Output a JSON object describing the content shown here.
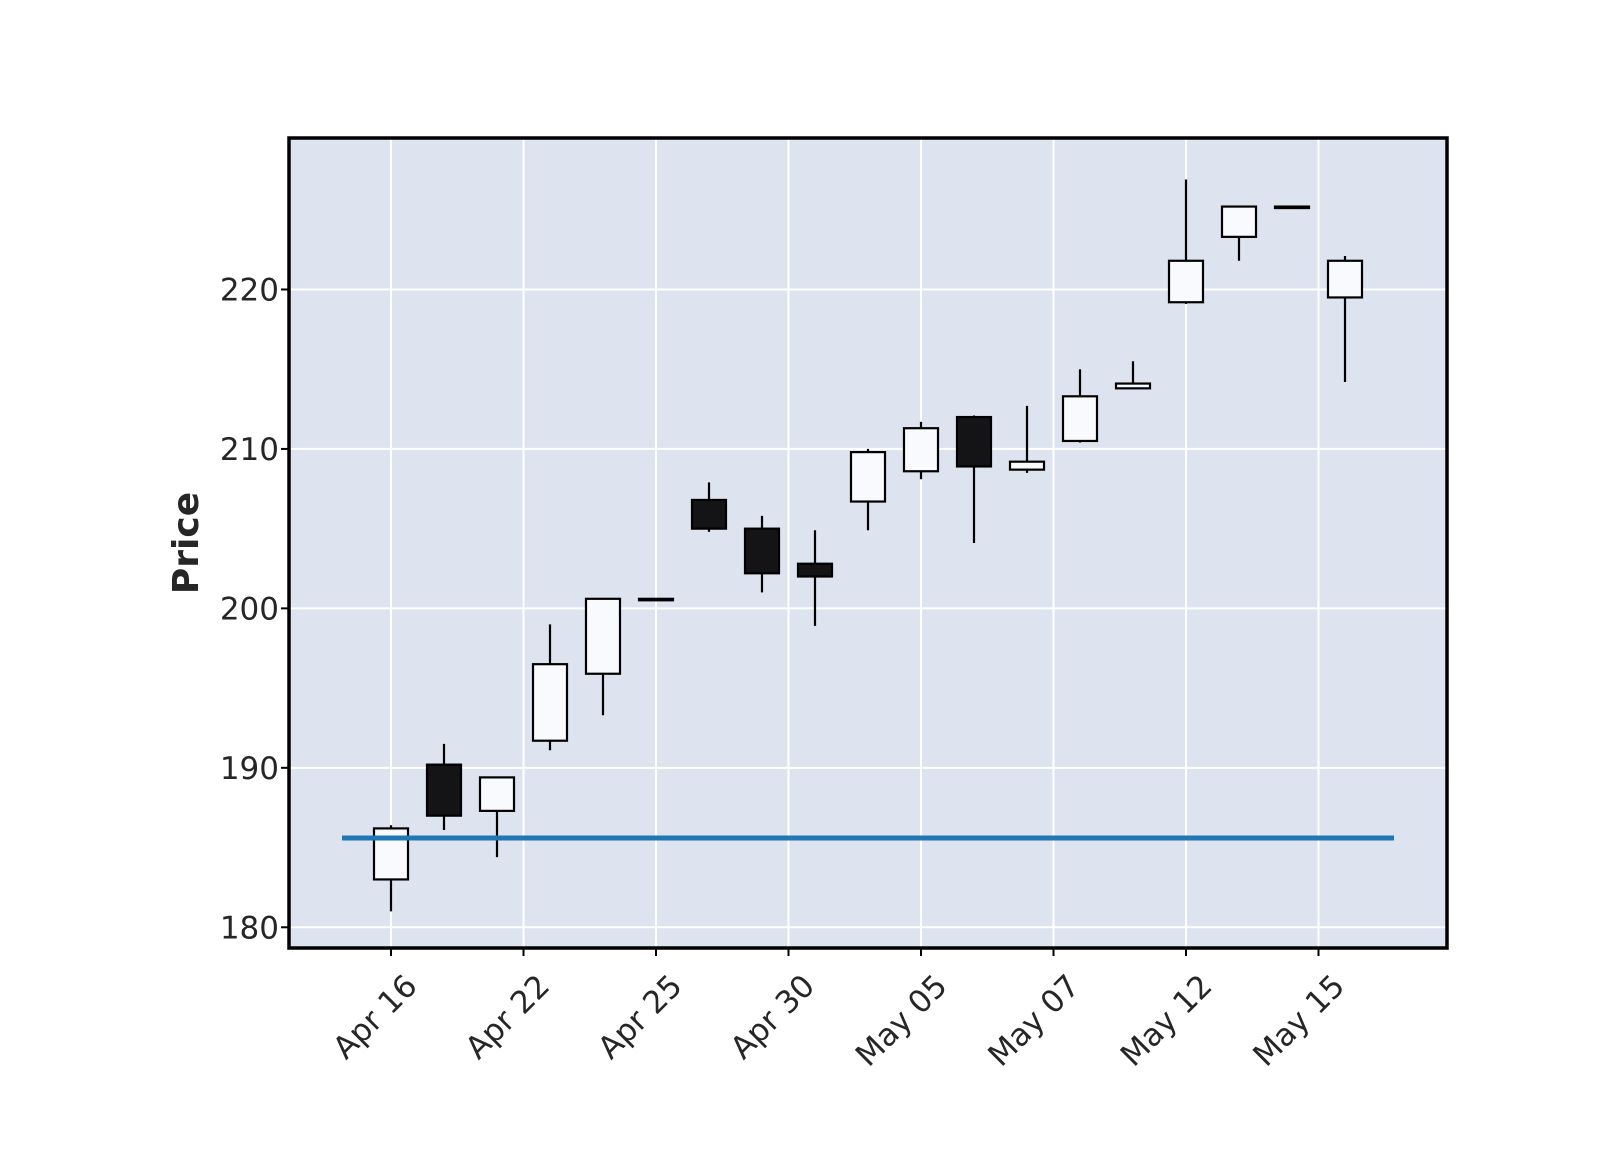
{
  "chart_data": {
    "type": "candlestick",
    "ylabel": "Price",
    "ylim": [
      178.7,
      229.5
    ],
    "yticks": [
      180,
      190,
      200,
      210,
      220
    ],
    "xtick_labels": [
      {
        "index": 0,
        "label": "Apr 16"
      },
      {
        "index": 2.5,
        "label": "Apr 22"
      },
      {
        "index": 5,
        "label": "Apr 25"
      },
      {
        "index": 7.5,
        "label": "Apr 30"
      },
      {
        "index": 10,
        "label": "May 05"
      },
      {
        "index": 12.5,
        "label": "May 07"
      },
      {
        "index": 15,
        "label": "May 12"
      },
      {
        "index": 17.5,
        "label": "May 15"
      }
    ],
    "candles": [
      {
        "open": 183.0,
        "high": 186.4,
        "low": 181.0,
        "close": 186.2
      },
      {
        "open": 190.2,
        "high": 191.5,
        "low": 186.1,
        "close": 187.0
      },
      {
        "open": 187.3,
        "high": 189.4,
        "low": 184.4,
        "close": 189.4
      },
      {
        "open": 191.7,
        "high": 199.0,
        "low": 191.1,
        "close": 196.5
      },
      {
        "open": 195.9,
        "high": 200.6,
        "low": 193.3,
        "close": 200.6
      },
      {
        "open": 200.6,
        "high": 200.6,
        "low": 200.6,
        "close": 200.6
      },
      {
        "open": 206.8,
        "high": 207.9,
        "low": 204.8,
        "close": 205.0
      },
      {
        "open": 205.0,
        "high": 205.8,
        "low": 201.0,
        "close": 202.2
      },
      {
        "open": 202.8,
        "high": 204.9,
        "low": 198.9,
        "close": 202.0
      },
      {
        "open": 206.7,
        "high": 210.0,
        "low": 204.9,
        "close": 209.8
      },
      {
        "open": 208.6,
        "high": 211.7,
        "low": 208.1,
        "close": 211.3
      },
      {
        "open": 212.0,
        "high": 212.1,
        "low": 204.1,
        "close": 208.9
      },
      {
        "open": 208.7,
        "high": 212.7,
        "low": 208.5,
        "close": 209.2
      },
      {
        "open": 210.5,
        "high": 215.0,
        "low": 210.4,
        "close": 213.3
      },
      {
        "open": 213.8,
        "high": 215.5,
        "low": 213.8,
        "close": 214.1
      },
      {
        "open": 219.2,
        "high": 226.9,
        "low": 219.1,
        "close": 221.8
      },
      {
        "open": 223.3,
        "high": 225.2,
        "low": 221.8,
        "close": 225.2
      },
      {
        "open": 225.2,
        "high": 225.2,
        "low": 225.2,
        "close": 225.2
      },
      {
        "open": 219.5,
        "high": 222.1,
        "low": 214.2,
        "close": 221.8
      }
    ],
    "hline": {
      "value": 185.6,
      "color": "#1f77b4"
    },
    "colors": {
      "up_fill": "#f8fafd",
      "down_fill": "#141417",
      "edge": "#000000",
      "plot_bg": "#dde3ef",
      "grid": "#ffffff"
    },
    "grid": true
  }
}
